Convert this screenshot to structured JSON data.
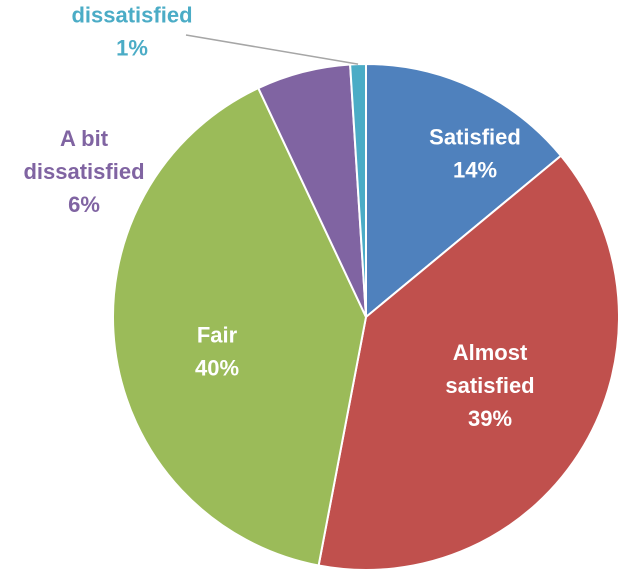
{
  "chart_data": {
    "type": "pie",
    "slices": [
      {
        "label_lines": [
          "Satisfied"
        ],
        "percent_label": "14%",
        "value": 14,
        "color": "#4f81bd",
        "label_color": "#ffffff"
      },
      {
        "label_lines": [
          "Almost",
          "satisfied"
        ],
        "percent_label": "39%",
        "value": 39,
        "color": "#c0504d",
        "label_color": "#ffffff"
      },
      {
        "label_lines": [
          "Fair"
        ],
        "percent_label": "40%",
        "value": 40,
        "color": "#9bbb59",
        "label_color": "#ffffff"
      },
      {
        "label_lines": [
          "A bit",
          "dissatisfied"
        ],
        "percent_label": "6%",
        "value": 6,
        "color": "#8064a2",
        "label_color": "#8064a2"
      },
      {
        "label_lines": [
          "dissatisfied"
        ],
        "percent_label": "1%",
        "value": 1,
        "color": "#4bacc6",
        "label_color": "#4bacc6"
      }
    ],
    "start_angle_deg": 0,
    "direction": "clockwise",
    "legend": "none"
  }
}
